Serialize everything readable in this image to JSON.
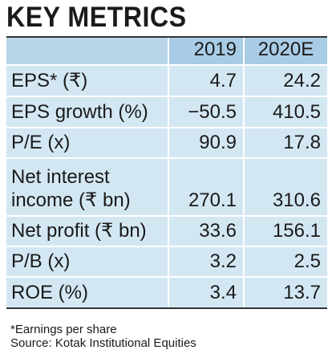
{
  "title": "KEY METRICS",
  "columns": [
    "2019",
    "2020E"
  ],
  "rows": [
    {
      "label": "EPS* (₹)",
      "v2019": "4.7",
      "v2020": "24.2"
    },
    {
      "label": "EPS growth (%)",
      "v2019": "−50.5",
      "v2020": "410.5"
    },
    {
      "label": "P/E (x)",
      "v2019": "90.9",
      "v2020": "17.8"
    },
    {
      "label_line1": "Net interest",
      "label_line2": "income (₹ bn)",
      "v2019": "270.1",
      "v2020": "310.6"
    },
    {
      "label": "Net profit (₹ bn)",
      "v2019": "33.6",
      "v2020": "156.1"
    },
    {
      "label": "P/B (x)",
      "v2019": "3.2",
      "v2020": "2.5"
    },
    {
      "label": "ROE (%)",
      "v2019": "3.4",
      "v2020": "13.7"
    }
  ],
  "footnote": "*Earnings per share",
  "source": "Source: Kotak Institutional Equities",
  "colors": {
    "header_label": "#b8d5ea",
    "header_year": "#a8cce6",
    "row": "#d3e7f3"
  }
}
